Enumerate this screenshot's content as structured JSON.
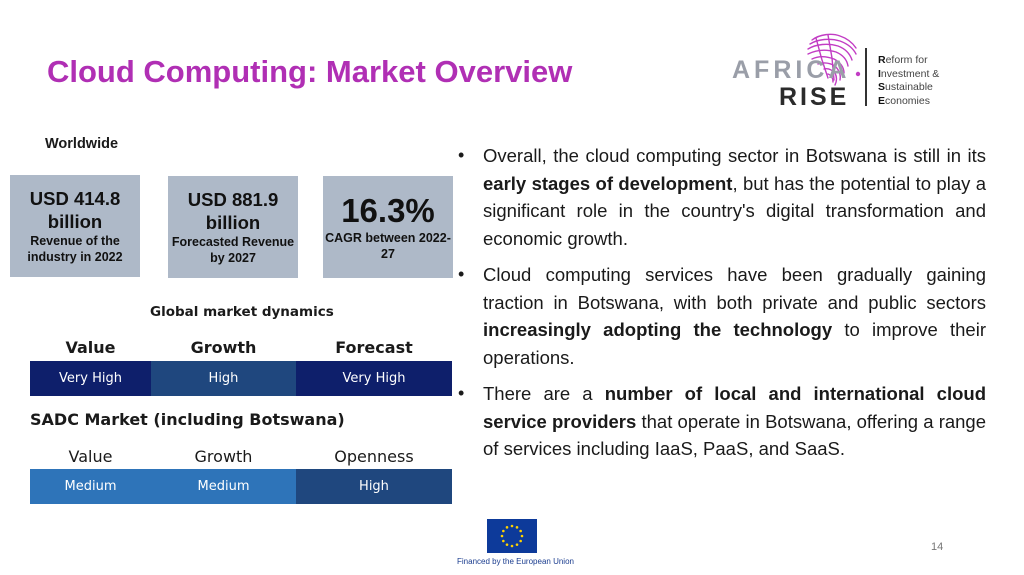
{
  "title": "Cloud Computing: Market Overview",
  "logo": {
    "africa": "AFRICA",
    "rise": "RISE",
    "tagline": [
      {
        "initial": "R",
        "rest": "eform for"
      },
      {
        "initial": "I",
        "rest": "nvestment &"
      },
      {
        "initial": "S",
        "rest": "ustainable"
      },
      {
        "initial": "E",
        "rest": "conomies"
      }
    ]
  },
  "worldwide": {
    "label": "Worldwide",
    "boxes": [
      {
        "main": "USD 414.8 billion",
        "sub": "Revenue of the industry in 2022"
      },
      {
        "main": "USD 881.9 billion",
        "sub": "Forecasted Revenue by 2027"
      },
      {
        "main": "16.3%",
        "sub": "CAGR between 2022-27"
      }
    ]
  },
  "global_dynamics": {
    "title": "Global market dynamics",
    "headers": [
      "Value",
      "Growth",
      "Forecast"
    ],
    "values": [
      "Very High",
      "High",
      "Very High"
    ],
    "colors": [
      "#0e1f6b",
      "#1f477e",
      "#0e1f6b"
    ]
  },
  "sadc": {
    "title": "SADC Market (including Botswana)",
    "headers": [
      "Value",
      "Growth",
      "Openness"
    ],
    "values": [
      "Medium",
      "Medium",
      "High"
    ],
    "colors": [
      "#2e74b9",
      "#2e74b9",
      "#1f477e"
    ]
  },
  "bullets": [
    [
      {
        "t": "Overall, the cloud computing sector in Botswana is still in its ",
        "b": false
      },
      {
        "t": "early stages of development",
        "b": true
      },
      {
        "t": ", but has the potential to play a significant role in the country's digital transformation and economic growth.",
        "b": false
      }
    ],
    [
      {
        "t": "Cloud computing services have been gradually gaining traction in Botswana, with both private and public sectors ",
        "b": false
      },
      {
        "t": "increasingly adopting the technology",
        "b": true
      },
      {
        "t": " to improve their operations.",
        "b": false
      }
    ],
    [
      {
        "t": "There are a ",
        "b": false
      },
      {
        "t": "number of local and international cloud service providers",
        "b": true
      },
      {
        "t": " that operate in Botswana, offering a range of services including IaaS, PaaS, and SaaS.",
        "b": false
      }
    ]
  ],
  "footer": {
    "eu_caption": "Financed by the European Union",
    "page_number": "14"
  },
  "colors": {
    "title": "#b02fb4",
    "box_bg": "#aeb9c8",
    "eu_blue": "#0d3a9a",
    "eu_star": "#ffd200"
  }
}
